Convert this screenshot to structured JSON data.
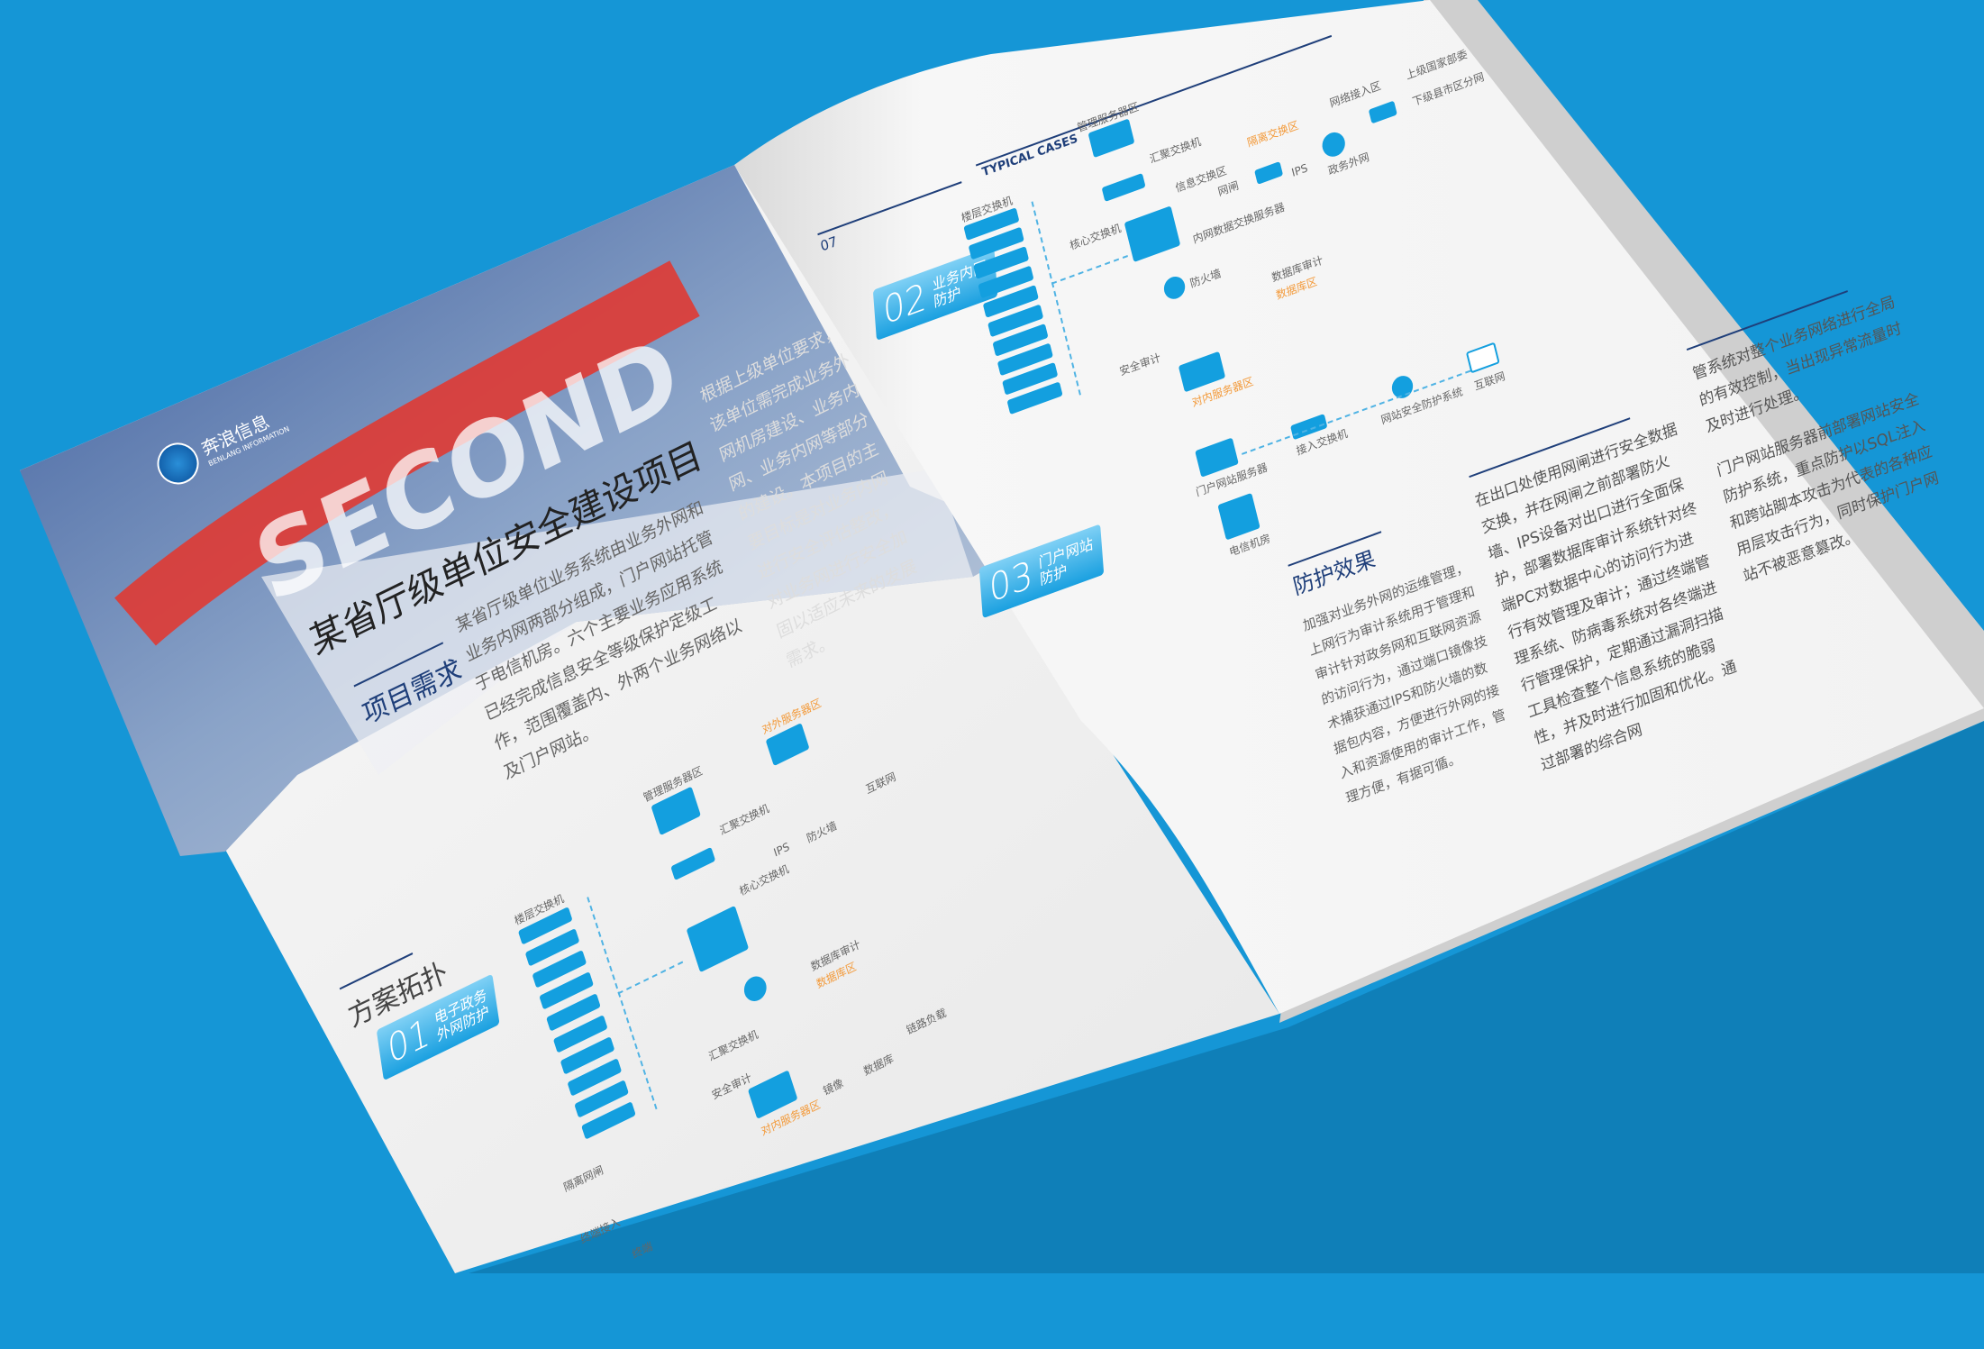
{
  "colors": {
    "background": "#1596d6",
    "accent": "#139fdf",
    "highlight": "#f39a3a",
    "heading_rule": "#1f3f7a"
  },
  "left_page": {
    "logo": {
      "name": "奔浪信息",
      "english": "BENLANG INFORMATION"
    },
    "watermark": "SECOND",
    "title": "某省厅级单位安全建设项目",
    "requirements_heading": "项目需求",
    "requirements_col1": "某省厅级单位业务系统由业务外网和业务内网两部分组成，门户网站托管于电信机房。六个主要业务应用系统已经完成信息安全等级保护定级工作，范围覆盖内、外两个业务网络以及门户网站。",
    "requirements_col2": "根据上级单位要求，该单位需完成业务外网机房建设、业务内网、业务内网等部分的建设。本项目的主要目标是对业务内网进行安全评估整改，对业务网进行安全加固以适应未来的发展需求。",
    "topology_heading": "方案拓扑",
    "tag": {
      "number": "01",
      "label": "电子政务外网防护"
    },
    "diagram_labels": [
      "管理服务器区",
      "汇聚交换机",
      "核心交换机",
      "楼层交换机",
      "对外服务器区",
      "汇聚交换机",
      "IPS",
      "防火墙",
      "互联网",
      "数据库审计",
      "数据库区",
      "汇聚交换机",
      "安全审计",
      "对内服务器区",
      "镜像",
      "数据库",
      "链路负载",
      "隔离网闸",
      "终端接入",
      "终端"
    ]
  },
  "right_page": {
    "header": "TYPICAL CASES",
    "page_number": "07",
    "tag2": {
      "number": "02",
      "label": "业务内网防护"
    },
    "tag3": {
      "number": "03",
      "label": "门户网站防护"
    },
    "diagram_labels": [
      "管理服务器区",
      "汇聚交换机",
      "核心交换机",
      "楼层交换机",
      "信息交换区",
      "网闸",
      "内网数据交换服务器",
      "隔离交换区",
      "IPS",
      "政务外网",
      "网络接入区",
      "上级国家部委",
      "下级县市区分网",
      "防火墙",
      "数据库审计",
      "数据库区",
      "安全审计",
      "对内服务器区",
      "接入交换机",
      "网站安全防护系统",
      "互联网",
      "门户网站服务器",
      "电信机房"
    ],
    "effect_heading": "防护效果",
    "effect_col1": "加强对业务外网的运维管理，上网行为审计系统用于管理和审计针对政务网和互联网资源的访问行为，通过端口镜像技术捕获通过IPS和防火墙的数据包内容，方便进行外网的接入和资源使用的审计工作，管理方便，有据可循。",
    "effect_col2": "在出口处使用网闸进行安全数据交换，并在网闸之前部署防火墙、IPS设备对出口进行全面保护，部署数据库审计系统针对终端PC对数据中心的访问行为进行有效管理及审计；通过终端管理系统、防病毒系统对各终端进行管理保护，定期通过漏洞扫描工具检查整个信息系统的脆弱性，并及时进行加固和优化。通过部署的综合网",
    "effect_col3": "管系统对整个业务网络进行全局的有效控制，当出现异常流量时及时进行处理。",
    "effect_col4": "门户网站服务器前部署网站安全防护系统，重点防护以SQL注入和跨站脚本攻击为代表的各种应用层攻击行为，同时保护门户网站不被恶意篡改。"
  }
}
